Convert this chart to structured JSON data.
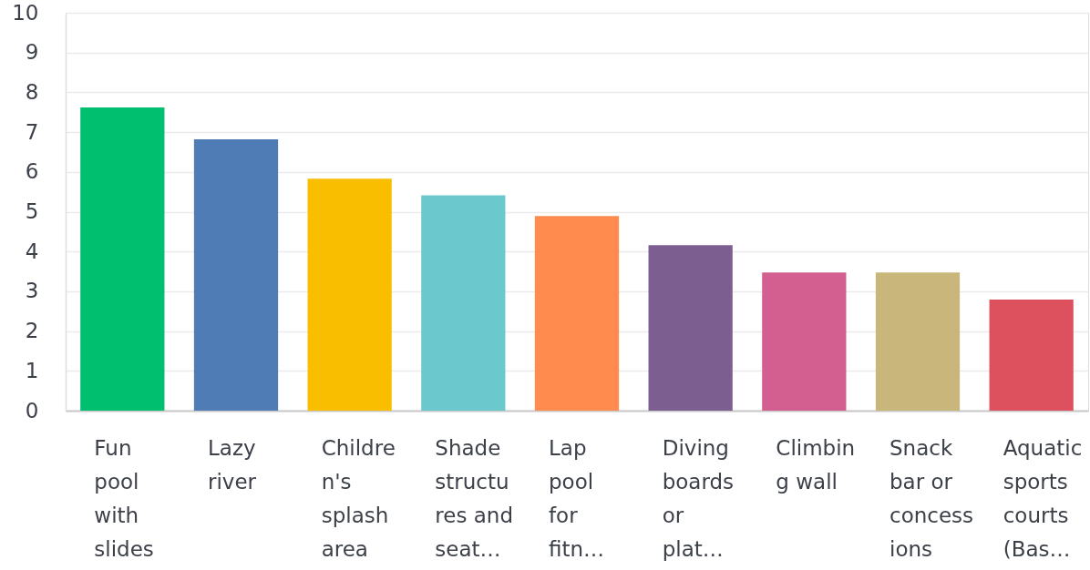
{
  "chart_data": {
    "type": "bar",
    "categories": [
      "Fun pool with slides",
      "Lazy river",
      "Children's splash area",
      "Shade structures and seat…",
      "Lap pool for fitn…",
      "Diving boards or plat…",
      "Climbing wall",
      "Snack bar or concessions",
      "Aquatic sports courts (Bas…"
    ],
    "values": [
      7.62,
      6.82,
      5.83,
      5.41,
      4.89,
      4.16,
      3.47,
      3.47,
      2.79
    ],
    "colors": [
      "#00bf6f",
      "#507cb6",
      "#f9be00",
      "#6bc8cd",
      "#ff8b4f",
      "#7d5e90",
      "#d25f90",
      "#c8b67a",
      "#dd505e"
    ],
    "ylim": [
      0,
      10
    ],
    "yticks": [
      0,
      1,
      2,
      3,
      4,
      5,
      6,
      7,
      8,
      9,
      10
    ],
    "grid": "y"
  }
}
